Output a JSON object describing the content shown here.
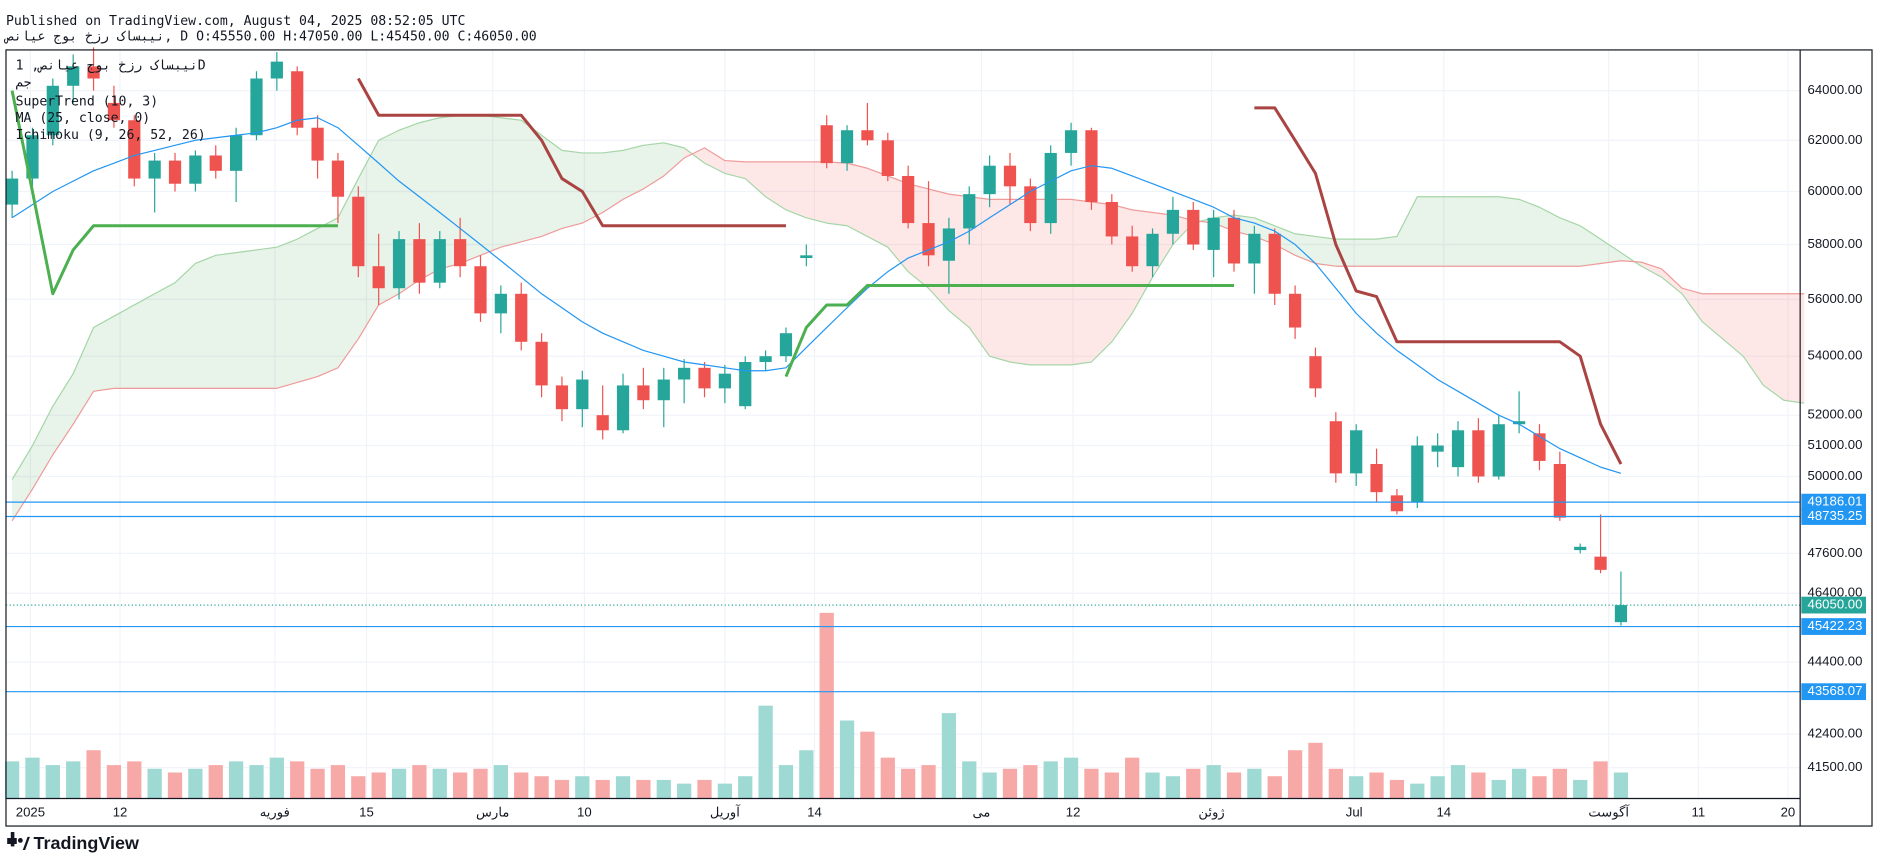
{
  "header": {
    "published": "Published on TradingView.com, August 04, 2025 08:52:05 UTC",
    "symbol_line": "نیبساک رزخ بوج عیانص, D O:45550.00 H:47050.00 L:45450.00 C:46050.00"
  },
  "branding": {
    "logo": "TradingView"
  },
  "chart_data": {
    "type": "candlestick",
    "legend": {
      "symbol": "نیبساک رزخ بوج عیانص, 1D",
      "exchange": "جم"
    },
    "up_color": "#26a69a",
    "down_color": "#ef5350",
    "volume_up_color": "#9fd9d3",
    "volume_down_color": "#f7a9a7",
    "log_scale": true,
    "grid": true,
    "xlim": [
      -0.3,
      87.8
    ],
    "ylim": [
      40690,
      65690
    ],
    "xticks": [
      {
        "value": 0.9,
        "label": "2025"
      },
      {
        "value": 5.3,
        "label": "12"
      },
      {
        "value": 12.9,
        "label": "فوریه"
      },
      {
        "value": 17.4,
        "label": "15"
      },
      {
        "value": 23.6,
        "label": "مارس"
      },
      {
        "value": 28.1,
        "label": "10"
      },
      {
        "value": 35,
        "label": "آوریل"
      },
      {
        "value": 39.4,
        "label": "14"
      },
      {
        "value": 47.6,
        "label": "می"
      },
      {
        "value": 52.1,
        "label": "12"
      },
      {
        "value": 58.9,
        "label": "ژوئن"
      },
      {
        "value": 65.9,
        "label": "Jul"
      },
      {
        "value": 70.3,
        "label": "14"
      },
      {
        "value": 78.4,
        "label": "آگوست"
      },
      {
        "value": 82.8,
        "label": "11"
      },
      {
        "value": 87.2,
        "label": "20"
      }
    ],
    "yticks": [
      {
        "value": 64000,
        "label": "64000.00"
      },
      {
        "value": 62000,
        "label": "62000.00"
      },
      {
        "value": 60000,
        "label": "60000.00"
      },
      {
        "value": 58000,
        "label": "58000.00"
      },
      {
        "value": 56000,
        "label": "56000.00"
      },
      {
        "value": 54000,
        "label": "54000.00"
      },
      {
        "value": 52000,
        "label": "52000.00"
      },
      {
        "value": 51000,
        "label": "51000.00"
      },
      {
        "value": 50000,
        "label": "50000.00"
      },
      {
        "value": 47600,
        "label": "47600.00"
      },
      {
        "value": 46400,
        "label": "46400.00"
      },
      {
        "value": 44400,
        "label": "44400.00"
      },
      {
        "value": 42400,
        "label": "42400.00"
      },
      {
        "value": 41500,
        "label": "41500.00"
      }
    ],
    "candles": [
      [
        59500,
        60800,
        59000,
        60500
      ],
      [
        60500,
        62500,
        60200,
        62200
      ],
      [
        62200,
        64500,
        61800,
        64200
      ],
      [
        64200,
        65500,
        63500,
        65000
      ],
      [
        65000,
        65800,
        64000,
        64500
      ],
      [
        63500,
        64200,
        62500,
        62800
      ],
      [
        62800,
        63000,
        60200,
        60500
      ],
      [
        60500,
        61500,
        59200,
        61200
      ],
      [
        61200,
        61500,
        60000,
        60300
      ],
      [
        60300,
        61600,
        60000,
        61400
      ],
      [
        61400,
        61800,
        60500,
        60800
      ],
      [
        60800,
        62500,
        59600,
        62200
      ],
      [
        62200,
        64800,
        62000,
        64500
      ],
      [
        64500,
        65600,
        64000,
        65200
      ],
      [
        64800,
        65000,
        62200,
        62500
      ],
      [
        62500,
        63000,
        60500,
        61200
      ],
      [
        61200,
        61500,
        58800,
        59800
      ],
      [
        59800,
        60200,
        56800,
        57200
      ],
      [
        57200,
        58400,
        55800,
        56400
      ],
      [
        56400,
        58500,
        56000,
        58200
      ],
      [
        58200,
        58800,
        56200,
        56600
      ],
      [
        56600,
        58500,
        56400,
        58200
      ],
      [
        58200,
        59000,
        56800,
        57200
      ],
      [
        57200,
        57600,
        55200,
        55500
      ],
      [
        55500,
        56500,
        54800,
        56200
      ],
      [
        56200,
        56600,
        54200,
        54500
      ],
      [
        54500,
        54800,
        52600,
        53000
      ],
      [
        53000,
        53300,
        51800,
        52200
      ],
      [
        52200,
        53500,
        51600,
        53200
      ],
      [
        52000,
        53000,
        51200,
        51500
      ],
      [
        51500,
        53400,
        51400,
        53000
      ],
      [
        53000,
        53600,
        52200,
        52500
      ],
      [
        52500,
        53600,
        51600,
        53200
      ],
      [
        53200,
        53900,
        52400,
        53600
      ],
      [
        53600,
        53800,
        52600,
        52900
      ],
      [
        52900,
        53700,
        52400,
        53400
      ],
      [
        52300,
        54000,
        52200,
        53800
      ],
      [
        53800,
        54200,
        53500,
        54000
      ],
      [
        54000,
        55000,
        53800,
        54800
      ],
      [
        57500,
        58000,
        57200,
        57600
      ],
      [
        62600,
        63000,
        60900,
        61100
      ],
      [
        61100,
        62600,
        60800,
        62400
      ],
      [
        62400,
        63500,
        61800,
        62000
      ],
      [
        62000,
        62300,
        60400,
        60600
      ],
      [
        60600,
        61000,
        58600,
        58800
      ],
      [
        58800,
        60400,
        57200,
        57600
      ],
      [
        57400,
        59000,
        56200,
        58600
      ],
      [
        58600,
        60200,
        58000,
        59900
      ],
      [
        59900,
        61400,
        59400,
        61000
      ],
      [
        61000,
        61500,
        59500,
        60200
      ],
      [
        60200,
        60500,
        58500,
        58800
      ],
      [
        58800,
        61800,
        58400,
        61500
      ],
      [
        61500,
        62700,
        61000,
        62400
      ],
      [
        62400,
        62500,
        59300,
        59600
      ],
      [
        59600,
        59900,
        58000,
        58300
      ],
      [
        58300,
        58700,
        57000,
        57200
      ],
      [
        57200,
        58600,
        56800,
        58400
      ],
      [
        58400,
        59800,
        58000,
        59300
      ],
      [
        59300,
        59600,
        57800,
        58000
      ],
      [
        57800,
        59300,
        56800,
        59000
      ],
      [
        59000,
        59300,
        57000,
        57300
      ],
      [
        57300,
        58700,
        56200,
        58400
      ],
      [
        58400,
        58600,
        55800,
        56200
      ],
      [
        56200,
        56500,
        54600,
        55000
      ],
      [
        54000,
        54300,
        52600,
        52900
      ],
      [
        51800,
        52100,
        49800,
        50100
      ],
      [
        50100,
        51700,
        49700,
        51500
      ],
      [
        50400,
        50900,
        49200,
        49500
      ],
      [
        49400,
        49600,
        48800,
        48900
      ],
      [
        49200,
        51300,
        49000,
        51000
      ],
      [
        50800,
        51400,
        50300,
        51000
      ],
      [
        50300,
        51800,
        50000,
        51500
      ],
      [
        51500,
        51900,
        49800,
        50000
      ],
      [
        50000,
        52000,
        49900,
        51700
      ],
      [
        51700,
        52800,
        51400,
        51800
      ],
      [
        51400,
        51700,
        50200,
        50500
      ],
      [
        50400,
        50800,
        48600,
        48700
      ],
      [
        47700,
        47900,
        47600,
        47800
      ],
      [
        47500,
        48800,
        47000,
        47100
      ],
      [
        45550,
        47050,
        45450,
        46050
      ]
    ],
    "volume": [
      20,
      22,
      18,
      20,
      26,
      18,
      20,
      16,
      14,
      16,
      18,
      20,
      18,
      22,
      20,
      16,
      18,
      12,
      14,
      16,
      18,
      16,
      14,
      16,
      18,
      14,
      12,
      10,
      12,
      10,
      12,
      10,
      10,
      8,
      10,
      8,
      12,
      50,
      18,
      26,
      100,
      42,
      36,
      22,
      16,
      18,
      46,
      20,
      14,
      16,
      18,
      20,
      22,
      16,
      14,
      22,
      14,
      12,
      16,
      18,
      14,
      16,
      12,
      26,
      30,
      16,
      12,
      14,
      10,
      8,
      12,
      18,
      14,
      10,
      16,
      12,
      16,
      10,
      20,
      14
    ],
    "indicators": {
      "supertrend": {
        "label": "SuperTrend (10, 3)",
        "up_color": "#4caf50",
        "down_color": "#a94442",
        "up": [
          64000,
          60000,
          56200,
          57800,
          58700,
          58700,
          58700,
          58700,
          58700,
          58700,
          58700,
          58700,
          58700,
          58700,
          58700,
          58700,
          58700,
          null,
          null,
          null,
          null,
          null,
          null,
          null,
          null,
          null,
          null,
          null,
          null,
          null,
          null,
          null,
          null,
          null,
          null,
          null,
          null,
          null,
          53300,
          55000,
          55800,
          55800,
          56500,
          56500,
          56500,
          56500,
          56500,
          56500,
          56500,
          56500,
          56500,
          56500,
          56500,
          56500,
          56500,
          56500,
          56500,
          56500,
          56500,
          56500,
          56500,
          null,
          null,
          null,
          null,
          null,
          null,
          null,
          null,
          null,
          null,
          null,
          null,
          null,
          null,
          null,
          null,
          null,
          null,
          null
        ],
        "down": [
          null,
          null,
          null,
          null,
          null,
          null,
          null,
          null,
          null,
          null,
          null,
          null,
          null,
          null,
          null,
          null,
          null,
          64500,
          63000,
          63000,
          63000,
          63000,
          63000,
          63000,
          63000,
          63000,
          62000,
          60500,
          60000,
          58700,
          58700,
          58700,
          58700,
          58700,
          58700,
          58700,
          58700,
          58700,
          58700,
          null,
          null,
          null,
          null,
          null,
          null,
          null,
          null,
          null,
          null,
          null,
          null,
          null,
          null,
          null,
          null,
          null,
          null,
          null,
          null,
          null,
          null,
          63300,
          63300,
          62000,
          60700,
          58000,
          56300,
          56100,
          54500,
          54500,
          54500,
          54500,
          54500,
          54500,
          54500,
          54500,
          54500,
          54000,
          51700,
          50400
        ]
      },
      "ma": {
        "label": "MA (25, close, 0)",
        "color": "#2196f3",
        "values": [
          59000,
          59500,
          60000,
          60400,
          60800,
          61100,
          61400,
          61600,
          61800,
          62000,
          62100,
          62200,
          62300,
          62500,
          62800,
          62900,
          62500,
          61800,
          61100,
          60400,
          59800,
          59200,
          58600,
          58000,
          57400,
          56800,
          56200,
          55700,
          55200,
          54800,
          54500,
          54200,
          54000,
          53800,
          53700,
          53600,
          53500,
          53500,
          53600,
          54300,
          55000,
          55700,
          56400,
          57000,
          57500,
          57800,
          58100,
          58500,
          59000,
          59500,
          60000,
          60400,
          60800,
          61000,
          60900,
          60600,
          60300,
          60000,
          59700,
          59400,
          59000,
          58800,
          58500,
          58000,
          57300,
          56400,
          55500,
          54800,
          54200,
          53700,
          53200,
          52800,
          52400,
          52000,
          51700,
          51300,
          50900,
          50600,
          50300,
          50100
        ]
      },
      "ichimoku": {
        "label": "Ichimoku (9, 26, 52, 26)",
        "span_a_color": "#a5d6a7",
        "span_b_color": "#ef9a9a",
        "bull_fill": "rgba(67,160,71,0.12)",
        "bear_fill": "rgba(244,67,54,0.12)",
        "span_a": [
          49900,
          51000,
          52300,
          53400,
          55000,
          55400,
          55800,
          56200,
          56600,
          57300,
          57600,
          57700,
          57800,
          57900,
          58200,
          58600,
          59000,
          60500,
          62000,
          62400,
          62700,
          62900,
          63000,
          63000,
          62900,
          62800,
          62200,
          61600,
          61500,
          61500,
          61600,
          61800,
          61900,
          61700,
          61100,
          60700,
          60500,
          59800,
          59300,
          59000,
          58800,
          58700,
          58300,
          57900,
          57000,
          56400,
          55600,
          55000,
          54000,
          53800,
          53700,
          53700,
          53700,
          53800,
          54500,
          55500,
          56800,
          58000,
          58800,
          59000,
          59100,
          59000,
          58700,
          58400,
          58300,
          58200,
          58200,
          58200,
          58300,
          59800,
          59800,
          59800,
          59800,
          59800,
          59700,
          59400,
          59000,
          58700,
          58200,
          57700,
          57200,
          56800,
          56200,
          55200,
          54600,
          54000,
          53000,
          52500,
          52400
        ],
        "span_b": [
          48600,
          49600,
          50700,
          51700,
          52800,
          52900,
          52900,
          52900,
          52900,
          52900,
          52900,
          52900,
          52900,
          52900,
          53100,
          53300,
          53600,
          54600,
          55800,
          56200,
          56700,
          57100,
          57300,
          57600,
          57900,
          58100,
          58300,
          58600,
          58800,
          59200,
          59700,
          60100,
          60600,
          61300,
          61700,
          61200,
          61150,
          61150,
          61150,
          61150,
          61150,
          61100,
          60900,
          60600,
          60300,
          60100,
          59900,
          59800,
          59700,
          59700,
          59700,
          59700,
          59700,
          59600,
          59500,
          59300,
          59200,
          59100,
          58900,
          58800,
          58500,
          58300,
          58000,
          57600,
          57300,
          57200,
          57200,
          57200,
          57200,
          57200,
          57200,
          57200,
          57200,
          57200,
          57200,
          57200,
          57200,
          57200,
          57300,
          57400,
          57350,
          57100,
          56400,
          56200,
          56200,
          56200,
          56200,
          56200,
          56200
        ]
      }
    },
    "levels": [
      {
        "value": 49186.01,
        "label": "49186.01"
      },
      {
        "value": 48735.25,
        "label": "48735.25"
      },
      {
        "value": 45422.23,
        "label": "45422.23"
      },
      {
        "value": 43568.07,
        "label": "43568.07"
      }
    ],
    "level_color": "#2196f3",
    "last_price": {
      "value": 46050,
      "label": "46050.00"
    }
  }
}
